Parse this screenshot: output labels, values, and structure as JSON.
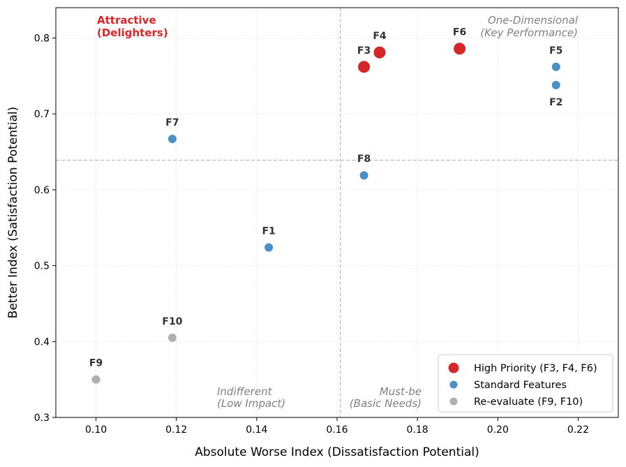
{
  "chart_data": {
    "type": "scatter",
    "xlabel": "Absolute Worse Index (Dissatisfaction Potential)",
    "ylabel": "Better Index (Satisfaction Potential)",
    "xlim": [
      0.09,
      0.23
    ],
    "ylim": [
      0.3,
      0.84
    ],
    "xticks": [
      0.1,
      0.12,
      0.14,
      0.16,
      0.18,
      0.2,
      0.22
    ],
    "xtick_labels": [
      "0.10",
      "0.12",
      "0.14",
      "0.16",
      "0.18",
      "0.20",
      "0.22"
    ],
    "yticks": [
      0.3,
      0.4,
      0.5,
      0.6,
      0.7,
      0.8
    ],
    "ytick_labels": [
      "0.3",
      "0.4",
      "0.5",
      "0.6",
      "0.7",
      "0.8"
    ],
    "grid": true,
    "thresholds": {
      "x": 0.1608,
      "y": 0.639
    },
    "points": [
      {
        "label": "F1",
        "x": 0.143,
        "y": 0.524,
        "group": "standard",
        "label_pos": "above"
      },
      {
        "label": "F2",
        "x": 0.2145,
        "y": 0.738,
        "group": "standard",
        "label_pos": "below"
      },
      {
        "label": "F3",
        "x": 0.1667,
        "y": 0.762,
        "group": "high",
        "label_pos": "above"
      },
      {
        "label": "F4",
        "x": 0.1706,
        "y": 0.781,
        "group": "high",
        "label_pos": "above"
      },
      {
        "label": "F5",
        "x": 0.2145,
        "y": 0.762,
        "group": "standard",
        "label_pos": "above"
      },
      {
        "label": "F6",
        "x": 0.1905,
        "y": 0.786,
        "group": "high",
        "label_pos": "above"
      },
      {
        "label": "F7",
        "x": 0.119,
        "y": 0.667,
        "group": "standard",
        "label_pos": "above"
      },
      {
        "label": "F8",
        "x": 0.1667,
        "y": 0.619,
        "group": "standard",
        "label_pos": "above"
      },
      {
        "label": "F9",
        "x": 0.1,
        "y": 0.35,
        "group": "reevaluate",
        "label_pos": "above"
      },
      {
        "label": "F10",
        "x": 0.119,
        "y": 0.405,
        "group": "reevaluate",
        "label_pos": "above"
      }
    ],
    "groups": {
      "high": {
        "color": "#d62728",
        "name": "High Priority (F3, F4, F6)"
      },
      "standard": {
        "color": "#4a90c4",
        "name": "Standard Features"
      },
      "reevaluate": {
        "color": "#b0b0b0",
        "name": "Re-evaluate (F9, F10)"
      }
    },
    "quadrant_labels": {
      "attractive": [
        "Attractive",
        "(Delighters)"
      ],
      "one_dimensional": [
        "One-Dimensional",
        "(Key Performance)"
      ],
      "indifferent": [
        "Indifferent",
        "(Low Impact)"
      ],
      "must_be": [
        "Must-be",
        "(Basic Needs)"
      ]
    },
    "legend": {
      "position": "lower-right",
      "entries": [
        "High Priority (F3, F4, F6)",
        "Standard Features",
        "Re-evaluate (F9, F10)"
      ]
    },
    "colors": {
      "attractive_label": "#d62728",
      "quadrant_label": "#808080",
      "threshold_line": "#bbbbbb",
      "grid": "#dddddd"
    }
  }
}
